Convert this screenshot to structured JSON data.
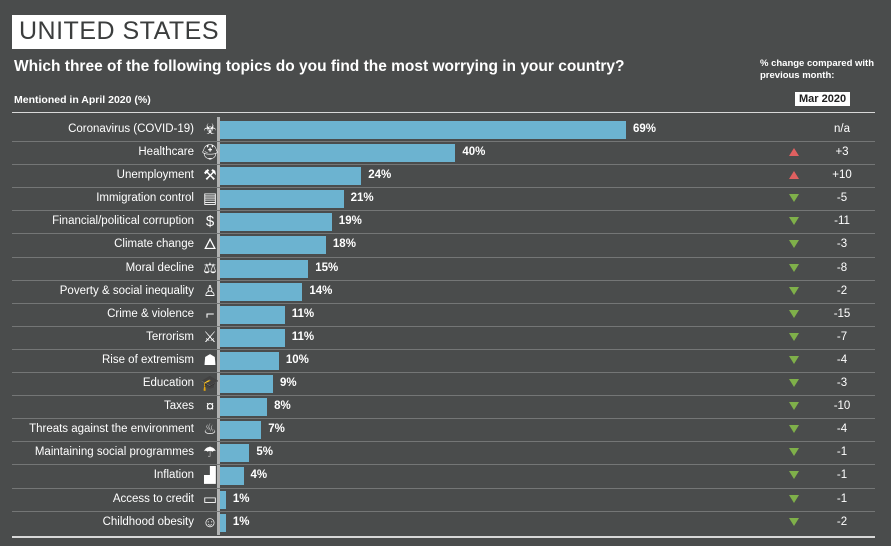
{
  "header": {
    "country": "UNITED STATES",
    "question": "Which three of the following topics do you find the most worrying in your country?",
    "pct_change_note": "% change compared with previous month:",
    "mentioned": "Mentioned in April 2020 (%)",
    "compare_month": "Mar 2020"
  },
  "colors": {
    "bar": "#6cb3d0",
    "up": "#e06060",
    "down": "#7fb04a",
    "background": "#4a4c4c"
  },
  "chart_data": {
    "type": "bar",
    "orientation": "horizontal",
    "categories": [
      "Coronavirus (COVID-19)",
      "Healthcare",
      "Unemployment",
      "Immigration control",
      "Financial/political corruption",
      "Climate change",
      "Moral decline",
      "Poverty & social inequality",
      "Crime & violence",
      "Terrorism",
      "Rise of extremism",
      "Education",
      "Taxes",
      "Threats against the environment",
      "Maintaining social programmes",
      "Inflation",
      "Access to credit",
      "Childhood obesity"
    ],
    "values": [
      69,
      40,
      24,
      21,
      19,
      18,
      15,
      14,
      11,
      11,
      10,
      9,
      8,
      7,
      5,
      4,
      1,
      1
    ],
    "value_labels": [
      "69%",
      "40%",
      "24%",
      "21%",
      "19%",
      "18%",
      "15%",
      "14%",
      "11%",
      "11%",
      "10%",
      "9%",
      "8%",
      "7%",
      "5%",
      "4%",
      "1%",
      "1%"
    ],
    "changes": [
      "n/a",
      "+3",
      "+10",
      "-5",
      "-11",
      "-3",
      "-8",
      "-2",
      "-15",
      "-7",
      "-4",
      "-3",
      "-10",
      "-4",
      "-1",
      "-1",
      "-1",
      "-2"
    ],
    "change_direction": [
      "none",
      "up",
      "up",
      "down",
      "down",
      "down",
      "down",
      "down",
      "down",
      "down",
      "down",
      "down",
      "down",
      "down",
      "down",
      "down",
      "down",
      "down"
    ],
    "icons": [
      "biohazard-icon",
      "nurse-cap-icon",
      "unemployed-person-icon",
      "suitcase-icon",
      "money-bag-icon",
      "burning-globe-icon",
      "moral-decline-icon",
      "poor-person-icon",
      "gun-icon",
      "crossed-weapons-icon",
      "extremist-mask-icon",
      "graduation-cap-icon",
      "tax-money-icon",
      "polluted-environment-icon",
      "social-programmes-icon",
      "rising-chart-icon",
      "credit-card-icon",
      "child-obesity-icon"
    ],
    "xlim": [
      0,
      100
    ]
  }
}
